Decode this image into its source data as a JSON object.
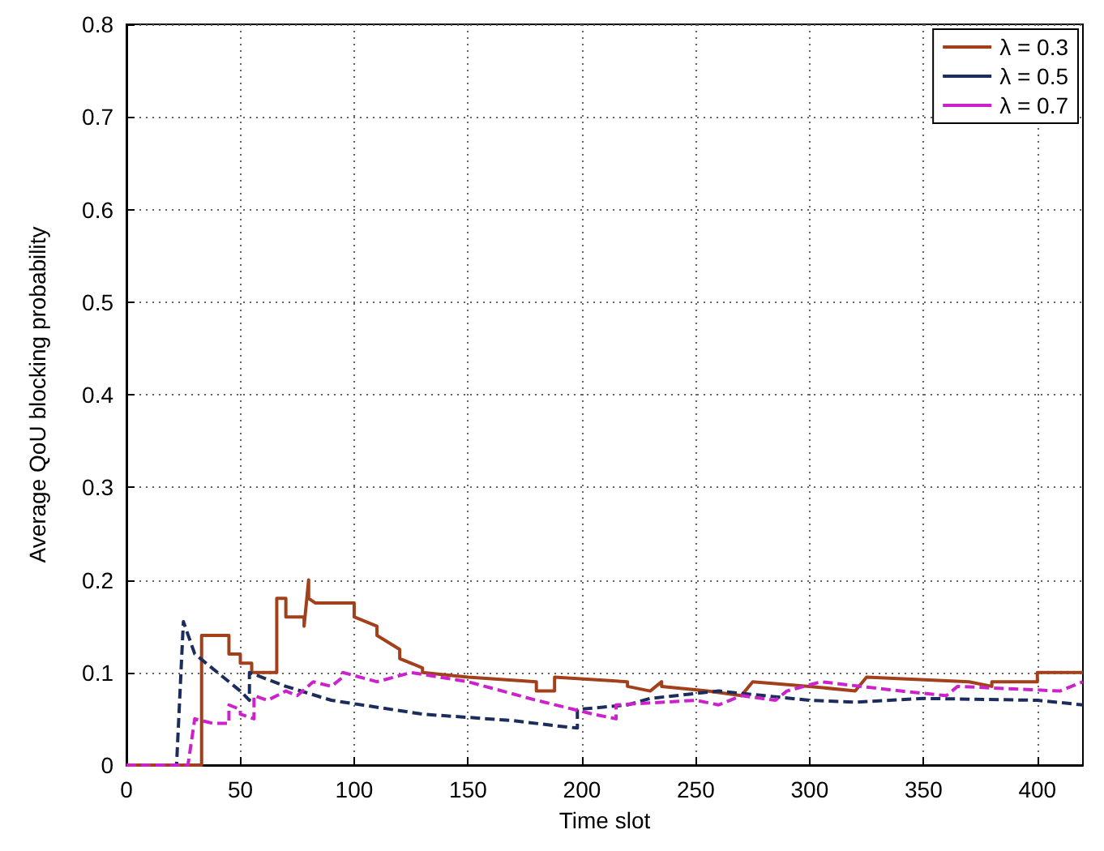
{
  "chart_data": {
    "type": "line",
    "xlabel": "Time slot",
    "ylabel": "Average QoU blocking probability",
    "xlim": [
      0,
      420
    ],
    "xticks": [
      0,
      50,
      100,
      150,
      200,
      250,
      300,
      350,
      400
    ],
    "ylim": [
      0,
      0.8
    ],
    "yticks": [
      0,
      0.1,
      0.2,
      0.3,
      0.4,
      0.5,
      0.6,
      0.7,
      0.8
    ],
    "grid": true,
    "legend": "top right",
    "marker": "none",
    "series": [
      {
        "name": "λ = 0.3",
        "color": "#a3401c",
        "line_style": "solid",
        "x": [
          0,
          33,
          33,
          45,
          45,
          50,
          50,
          55,
          55,
          66,
          66,
          70,
          70,
          78,
          78,
          80,
          80,
          83,
          83,
          100,
          100,
          110,
          110,
          120,
          120,
          130,
          130,
          150,
          150,
          180,
          180,
          188,
          188,
          220,
          220,
          230,
          230,
          235,
          235,
          255,
          255,
          270,
          270,
          275,
          275,
          300,
          300,
          320,
          320,
          325,
          325,
          370,
          370,
          380,
          380,
          400,
          400,
          420
        ],
        "values": [
          0,
          0,
          0.14,
          0.14,
          0.12,
          0.12,
          0.11,
          0.11,
          0.1,
          0.1,
          0.18,
          0.18,
          0.16,
          0.16,
          0.15,
          0.2,
          0.18,
          0.175,
          0.175,
          0.175,
          0.16,
          0.15,
          0.14,
          0.125,
          0.115,
          0.105,
          0.1,
          0.095,
          0.095,
          0.09,
          0.08,
          0.08,
          0.095,
          0.09,
          0.085,
          0.08,
          0.08,
          0.09,
          0.085,
          0.08,
          0.08,
          0.075,
          0.075,
          0.09,
          0.09,
          0.085,
          0.085,
          0.08,
          0.08,
          0.095,
          0.095,
          0.09,
          0.09,
          0.085,
          0.09,
          0.09,
          0.1,
          0.1
        ]
      },
      {
        "name": "λ = 0.5",
        "color": "#1c2c5c",
        "line_style": "dashed",
        "x": [
          0,
          22,
          25,
          30,
          40,
          50,
          54,
          54,
          70,
          90,
          130,
          170,
          190,
          198,
          198,
          220,
          230,
          260,
          280,
          300,
          320,
          350,
          400,
          420
        ],
        "values": [
          0,
          0,
          0.155,
          0.12,
          0.1,
          0.08,
          0.07,
          0.1,
          0.085,
          0.07,
          0.055,
          0.048,
          0.042,
          0.04,
          0.06,
          0.065,
          0.072,
          0.08,
          0.075,
          0.07,
          0.068,
          0.072,
          0.07,
          0.065
        ]
      },
      {
        "name": "λ = 0.7",
        "color": "#cc22cc",
        "line_style": "dashed",
        "x": [
          0,
          27,
          30,
          38,
          38,
          45,
          45,
          50,
          50,
          56,
          56,
          62,
          62,
          70,
          70,
          75,
          75,
          82,
          82,
          90,
          90,
          95,
          95,
          110,
          110,
          125,
          125,
          150,
          180,
          205,
          215,
          215,
          250,
          260,
          270,
          285,
          290,
          305,
          340,
          360,
          365,
          410,
          420
        ],
        "values": [
          0,
          0,
          0.05,
          0.045,
          0.045,
          0.045,
          0.065,
          0.06,
          0.055,
          0.05,
          0.075,
          0.07,
          0.07,
          0.08,
          0.08,
          0.075,
          0.075,
          0.09,
          0.09,
          0.085,
          0.085,
          0.095,
          0.1,
          0.09,
          0.09,
          0.1,
          0.1,
          0.09,
          0.07,
          0.055,
          0.05,
          0.065,
          0.07,
          0.065,
          0.075,
          0.07,
          0.08,
          0.09,
          0.08,
          0.075,
          0.085,
          0.08,
          0.09
        ]
      }
    ]
  }
}
